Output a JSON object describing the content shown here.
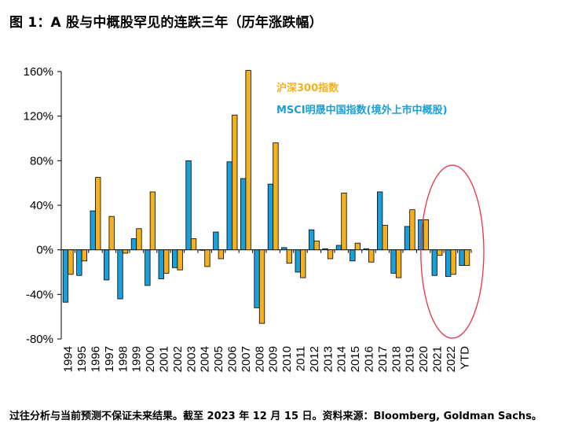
{
  "figure": {
    "title": "图 1：A 股与中概股罕见的连跌三年（历年涨跌幅）",
    "footnote": "过往分析与当前预测不保证未来结果。截至 2023 年 12 月 15 日。资料来源：Bloomberg, Goldman Sachs。"
  },
  "colors": {
    "csi300": "#F5B11B",
    "msci_china": "#1AA0D8",
    "highlight_circle": "#E8334A"
  },
  "chart_data": {
    "type": "bar",
    "title": "A 股与中概股罕见的连跌三年（历年涨跌幅）",
    "categories": [
      "1994",
      "1995",
      "1996",
      "1997",
      "1998",
      "1999",
      "2000",
      "2001",
      "2002",
      "2003",
      "2004",
      "2005",
      "2006",
      "2007",
      "2008",
      "2009",
      "2010",
      "2011",
      "2012",
      "2013",
      "2014",
      "2015",
      "2016",
      "2017",
      "2018",
      "2019",
      "2020",
      "2021",
      "2022",
      "YTD"
    ],
    "series": [
      {
        "name": "MSCI明晟中国指数(境外上市中概股)",
        "color": "#1AA0D8",
        "values": [
          -47,
          -23,
          35,
          -27,
          -44,
          10,
          -32,
          -26,
          -16,
          80,
          0,
          16,
          79,
          64,
          -52,
          59,
          2,
          -20,
          18,
          1,
          4,
          -10,
          1,
          52,
          -21,
          21,
          27,
          -23,
          -24,
          -14
        ]
      },
      {
        "name": "沪深300指数",
        "color": "#F5B11B",
        "values": [
          -22,
          -10,
          65,
          30,
          -3,
          19,
          52,
          -21,
          -18,
          10,
          -15,
          -8,
          121,
          161,
          -66,
          96,
          -12,
          -25,
          8,
          -8,
          51,
          6,
          -11,
          22,
          -25,
          36,
          27,
          -5,
          -22,
          -14
        ]
      }
    ],
    "ylim": [
      -80,
      160
    ],
    "yticks": [
      -80,
      -40,
      0,
      40,
      80,
      120,
      160
    ],
    "ytick_labels": [
      "-80%",
      "-40%",
      "0%",
      "40%",
      "80%",
      "120%",
      "160%"
    ],
    "legend": [
      "沪深300指数",
      "MSCI明晟中国指数(境外上市中概股)"
    ],
    "legend_position": "top-right",
    "highlight": {
      "shape": "ellipse",
      "categories": [
        "2021",
        "2022",
        "YTD"
      ]
    },
    "grid": false
  }
}
